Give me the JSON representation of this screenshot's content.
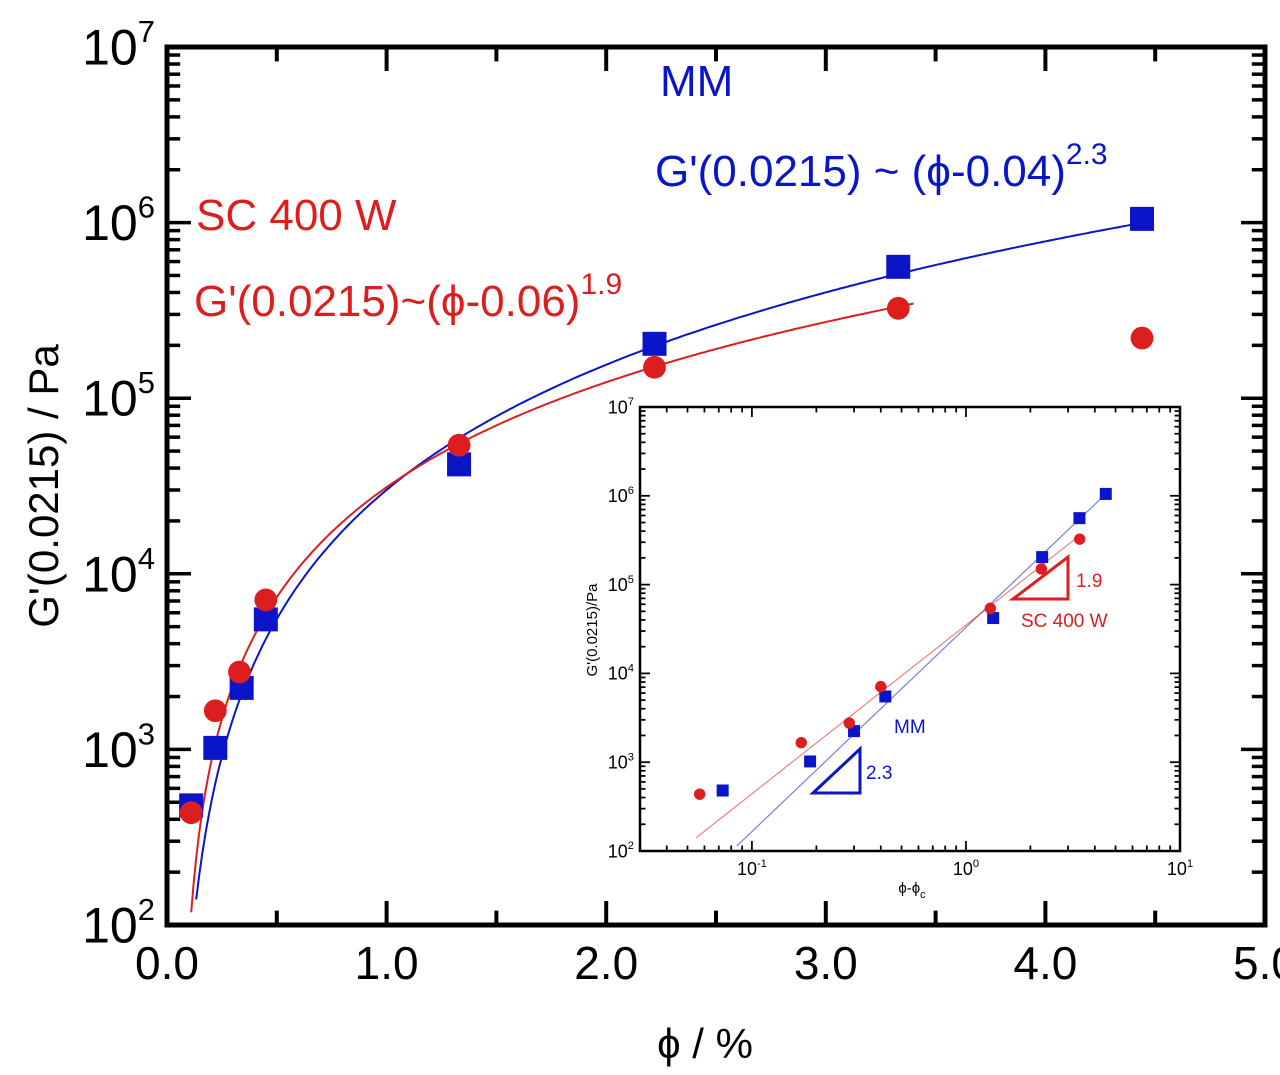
{
  "colors": {
    "mm": "#0a14c8",
    "sc": "#dc1e1e",
    "axis": "#000000"
  },
  "chart_data": [
    {
      "type": "scatter",
      "xlabel": "ϕ / %",
      "ylabel": "G'(0.0215) / Pa",
      "xlim": [
        0,
        5
      ],
      "ylim": [
        100,
        10000000
      ],
      "yscale": "log",
      "x_ticks": [
        "0.0",
        "1.0",
        "2.0",
        "3.0",
        "4.0",
        "5.0"
      ],
      "y_ticks": [
        {
          "base": "10",
          "exp": "2"
        },
        {
          "base": "10",
          "exp": "3"
        },
        {
          "base": "10",
          "exp": "4"
        },
        {
          "base": "10",
          "exp": "5"
        },
        {
          "base": "10",
          "exp": "6"
        },
        {
          "base": "10",
          "exp": "7"
        }
      ],
      "grid": false,
      "series": [
        {
          "name": "MM",
          "marker": "square",
          "color": "#0a14c8",
          "x": [
            0.11,
            0.22,
            0.34,
            0.45,
            1.33,
            2.22,
            3.33,
            4.44
          ],
          "y": [
            480,
            1020,
            2240,
            5500,
            42000,
            204000,
            560000,
            1050000
          ],
          "fit": {
            "label": "G'(0.0215) ~ (ϕ-0.04)",
            "exponent_label": "2.3",
            "phi_c": 0.04,
            "exponent": 2.3,
            "prefactor": 33000,
            "x_range": [
              0.06,
              4.44
            ]
          }
        },
        {
          "name": "SC 400 W",
          "marker": "circle",
          "color": "#dc1e1e",
          "x": [
            0.11,
            0.22,
            0.33,
            0.45,
            1.33,
            2.22,
            3.33,
            4.44
          ],
          "y": [
            436,
            1660,
            2760,
            7100,
            54000,
            150000,
            325000,
            220000
          ],
          "fit": {
            "label": "G'(0.0215)~(ϕ-0.06)",
            "exponent_label": "1.9",
            "phi_c": 0.06,
            "exponent": 1.9,
            "prefactor": 35000,
            "x_range": [
              0.11,
              3.4
            ]
          }
        }
      ]
    },
    {
      "type": "scatter",
      "xlabel": "ϕ-ϕ",
      "xlabel_sub": "c",
      "ylabel": "G'(0.0215)/Pa",
      "xlim": [
        0.03,
        10
      ],
      "ylim": [
        100,
        10000000
      ],
      "xscale": "log",
      "yscale": "log",
      "x_ticks": [
        {
          "base": "10",
          "exp": "-1"
        },
        {
          "base": "10",
          "exp": "0"
        },
        {
          "base": "10",
          "exp": "1"
        }
      ],
      "y_ticks": [
        {
          "base": "10",
          "exp": "2"
        },
        {
          "base": "10",
          "exp": "3"
        },
        {
          "base": "10",
          "exp": "4"
        },
        {
          "base": "10",
          "exp": "5"
        },
        {
          "base": "10",
          "exp": "6"
        },
        {
          "base": "10",
          "exp": "7"
        }
      ],
      "series": [
        {
          "name": "MM",
          "marker": "square",
          "color": "#0a14c8",
          "x": [
            0.073,
            0.187,
            0.3,
            0.42,
            1.34,
            2.27,
            3.39,
            4.5
          ],
          "y": [
            480,
            1020,
            2240,
            5500,
            42000,
            204000,
            560000,
            1050000
          ],
          "fit": {
            "exponent": 2.3,
            "prefactor": 33000,
            "x_range": [
              0.085,
              4.5
            ]
          }
        },
        {
          "name": "SC 400 W",
          "marker": "circle",
          "color": "#dc1e1e",
          "x": [
            0.057,
            0.17,
            0.285,
            0.4,
            1.3,
            2.25,
            3.4
          ],
          "y": [
            436,
            1660,
            2760,
            7100,
            54000,
            150000,
            325000
          ],
          "fit": {
            "exponent": 1.9,
            "prefactor": 35000,
            "x_range": [
              0.055,
              3.3
            ]
          }
        }
      ],
      "annotations": {
        "mm_label": "MM",
        "mm_slope": "2.3",
        "sc_label": "SC 400 W",
        "sc_slope": "1.9"
      }
    }
  ],
  "main_labels": {
    "mm_title": "MM",
    "sc_title": "SC 400 W"
  }
}
